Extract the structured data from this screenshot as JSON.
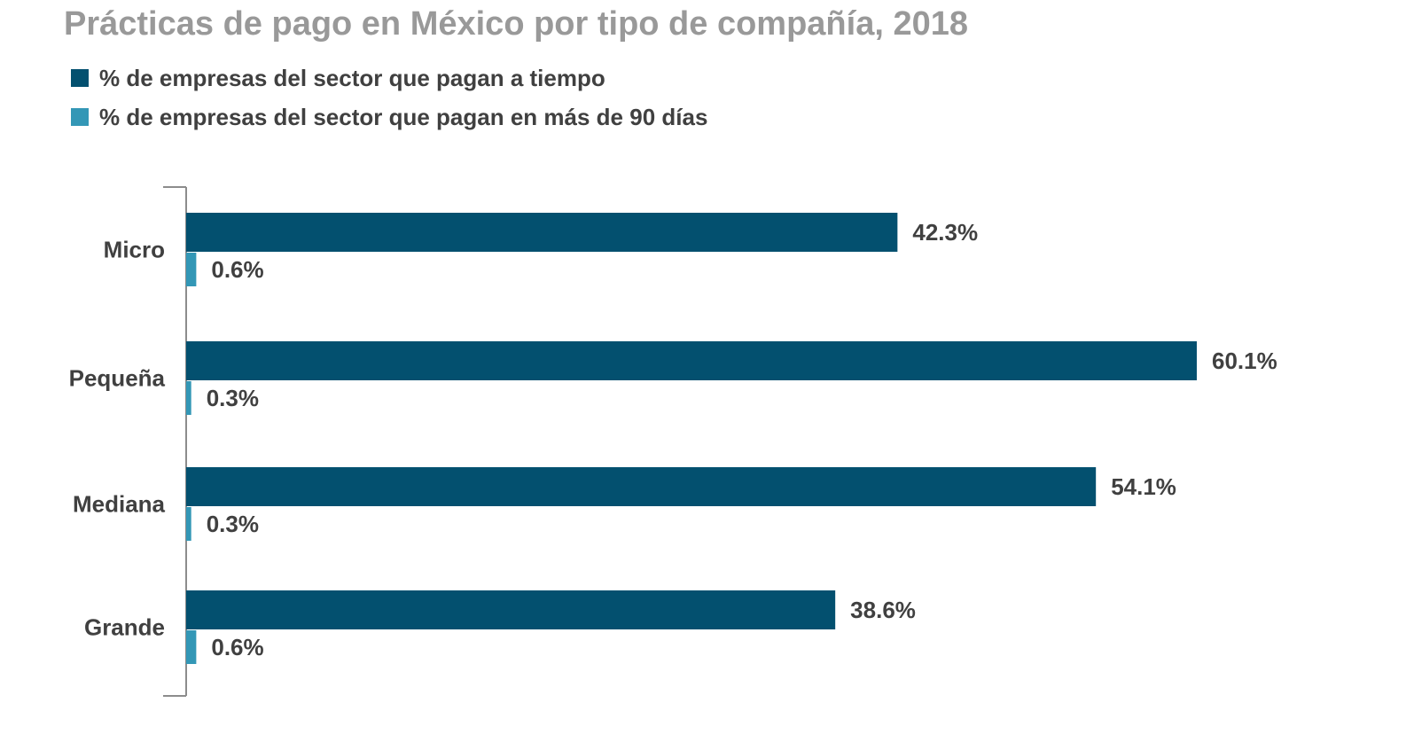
{
  "chart_data": {
    "type": "bar",
    "orientation": "horizontal",
    "title": "Prácticas de pago en México por tipo de compañía, 2018",
    "categories": [
      "Micro",
      "Pequeña",
      "Mediana",
      "Grande"
    ],
    "series": [
      {
        "name": "% de empresas del sector que pagan a tiempo",
        "color": "#03506f",
        "values": [
          42.3,
          60.1,
          54.1,
          38.6
        ],
        "labels": [
          "42.3%",
          "60.1%",
          "54.1%",
          "38.6%"
        ]
      },
      {
        "name": "% de empresas del sector que pagan en más de 90 días",
        "color": "#3397b6",
        "values": [
          0.6,
          0.3,
          0.3,
          0.6
        ],
        "labels": [
          "0.6%",
          "0.3%",
          "0.3%",
          "0.6%"
        ]
      }
    ],
    "xlim": [
      0,
      64
    ],
    "grid": false,
    "legend_position": "top-left"
  }
}
